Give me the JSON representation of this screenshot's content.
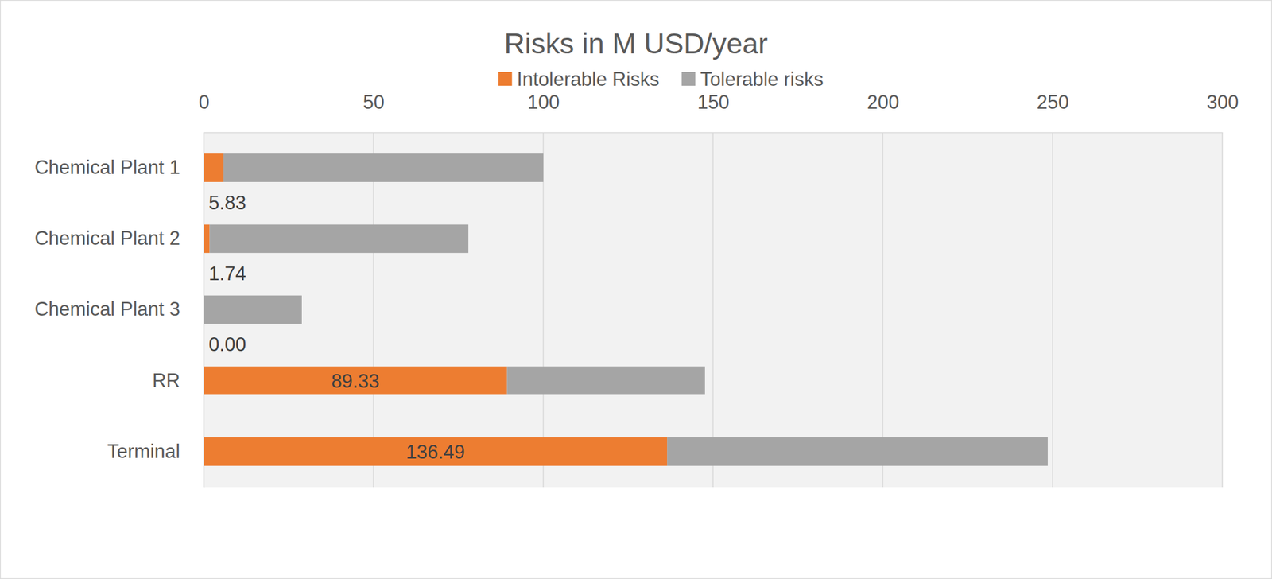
{
  "chart_data": {
    "type": "bar",
    "title": "Risks in M USD/year",
    "orientation": "horizontal",
    "stacked": true,
    "grid": true,
    "legend": "top",
    "categories": [
      "Chemical Plant 1",
      "Chemical Plant 2",
      "Chemical Plant 3",
      "RR",
      "Terminal"
    ],
    "series": [
      {
        "name": "Intolerable Risks",
        "color": "#ed7d31",
        "values": [
          5.83,
          1.74,
          0,
          89.33,
          136.49
        ],
        "data_labels": true,
        "value_labels": [
          "5.83",
          "1.74",
          "0.00",
          "89.33",
          "136.49"
        ]
      },
      {
        "name": "Tolerable risks",
        "color": "#a5a5a5",
        "values": [
          94.2,
          76.2,
          28.9,
          58.3,
          112.1
        ]
      }
    ],
    "ylim": [
      0,
      300
    ],
    "yticks": [
      0,
      50,
      100,
      150,
      200,
      250,
      300
    ]
  }
}
